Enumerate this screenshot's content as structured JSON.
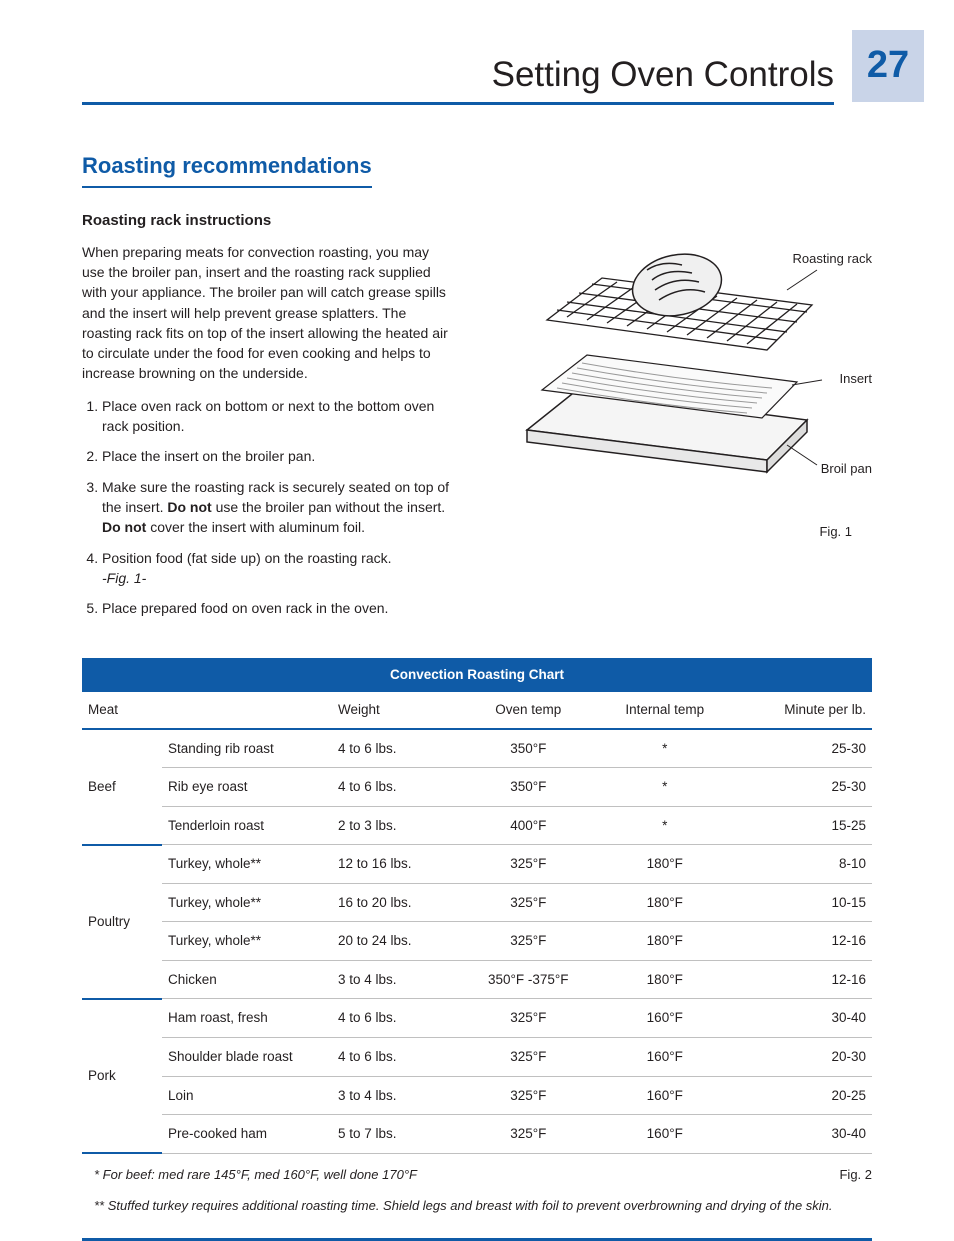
{
  "page": {
    "number": "27",
    "title": "Setting Oven Controls"
  },
  "section": {
    "title": "Roasting recommendations",
    "subheading": "Roasting rack instructions",
    "body": "When preparing meats for convection roasting, you may use the broiler pan, insert and the roasting rack supplied with your appliance. The broiler pan will catch grease spills and the insert will help prevent grease splatters. The roasting rack fits on top of the insert allowing the heated air to circulate under the food for even cooking and helps to increase browning on the underside.",
    "steps": [
      "Place oven rack on bottom or next to the bottom oven rack position.",
      "Place the insert on the broiler pan.",
      "Make sure the roasting rack is securely seated on top of the insert. <b>Do not</b> use the broiler pan without the insert. <b>Do not</b> cover the insert with aluminum foil.",
      "Position food (fat side up) on the roasting rack.<br><i>-Fig. 1-</i>",
      "Place prepared food on oven rack in the oven."
    ]
  },
  "figure1": {
    "labels": {
      "rack": "Roasting rack",
      "insert": "Insert",
      "pan": "Broil pan"
    },
    "caption": "Fig. 1"
  },
  "chart": {
    "title": "Convection Roasting Chart",
    "columns": [
      "Meat",
      "",
      "Weight",
      "Oven temp",
      "Internal temp",
      "Minute per lb."
    ],
    "groups": [
      {
        "meat": "Beef",
        "rows": [
          {
            "cut": "Standing rib roast",
            "weight": "4 to 6 lbs.",
            "oven": "350°F",
            "internal": "*",
            "mpl": "25-30"
          },
          {
            "cut": "Rib eye roast",
            "weight": "4 to 6 lbs.",
            "oven": "350°F",
            "internal": "*",
            "mpl": "25-30"
          },
          {
            "cut": "Tenderloin roast",
            "weight": "2 to 3 lbs.",
            "oven": "400°F",
            "internal": "*",
            "mpl": "15-25"
          }
        ]
      },
      {
        "meat": "Poultry",
        "rows": [
          {
            "cut": "Turkey, whole**",
            "weight": "12 to 16 lbs.",
            "oven": "325°F",
            "internal": "180°F",
            "mpl": "8-10"
          },
          {
            "cut": "Turkey, whole**",
            "weight": "16 to 20 lbs.",
            "oven": "325°F",
            "internal": "180°F",
            "mpl": "10-15"
          },
          {
            "cut": "Turkey, whole**",
            "weight": "20 to 24 lbs.",
            "oven": "325°F",
            "internal": "180°F",
            "mpl": "12-16"
          },
          {
            "cut": "Chicken",
            "weight": "3 to 4 lbs.",
            "oven": "350°F -375°F",
            "internal": "180°F",
            "mpl": "12-16"
          }
        ]
      },
      {
        "meat": "Pork",
        "rows": [
          {
            "cut": "Ham roast, fresh",
            "weight": "4 to 6 lbs.",
            "oven": "325°F",
            "internal": "160°F",
            "mpl": "30-40"
          },
          {
            "cut": "Shoulder blade roast",
            "weight": "4 to 6 lbs.",
            "oven": "325°F",
            "internal": "160°F",
            "mpl": "20-30"
          },
          {
            "cut": "Loin",
            "weight": "3 to 4 lbs.",
            "oven": "325°F",
            "internal": "160°F",
            "mpl": "20-25"
          },
          {
            "cut": "Pre-cooked ham",
            "weight": "5 to 7 lbs.",
            "oven": "325°F",
            "internal": "160°F",
            "mpl": "30-40"
          }
        ]
      }
    ],
    "fig2": "Fig. 2",
    "footnotes": [
      "* For beef: med rare 145°F, med 160°F, well done 170°F",
      "** Stuffed turkey requires additional roasting time. Shield legs and breast with foil to prevent overbrowning and drying of the skin."
    ]
  },
  "colors": {
    "brand": "#0f5ba7",
    "page_box_bg": "#c9d4e8"
  }
}
